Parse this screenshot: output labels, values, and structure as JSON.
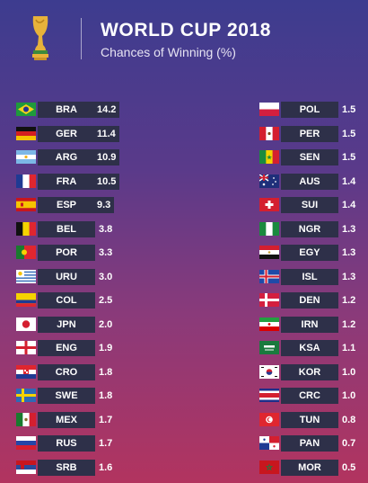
{
  "header": {
    "title": "WORLD CUP 2018",
    "subtitle": "Chances of Winning (%)",
    "icon": "trophy-icon"
  },
  "chart_data": {
    "type": "table",
    "title": "WORLD CUP 2018",
    "subtitle": "Chances of Winning (%)",
    "columns": [
      {
        "rows": [
          {
            "code": "BRA",
            "value": "14.2",
            "flag": "brazil"
          },
          {
            "code": "GER",
            "value": "11.4",
            "flag": "germany"
          },
          {
            "code": "ARG",
            "value": "10.9",
            "flag": "argentina"
          },
          {
            "code": "FRA",
            "value": "10.5",
            "flag": "france"
          },
          {
            "code": "ESP",
            "value": "9.3",
            "flag": "spain"
          },
          {
            "code": "BEL",
            "value": "3.8",
            "flag": "belgium"
          },
          {
            "code": "POR",
            "value": "3.3",
            "flag": "portugal"
          },
          {
            "code": "URU",
            "value": "3.0",
            "flag": "uruguay"
          },
          {
            "code": "COL",
            "value": "2.5",
            "flag": "colombia"
          },
          {
            "code": "JPN",
            "value": "2.0",
            "flag": "japan"
          },
          {
            "code": "ENG",
            "value": "1.9",
            "flag": "england"
          },
          {
            "code": "CRO",
            "value": "1.8",
            "flag": "croatia"
          },
          {
            "code": "SWE",
            "value": "1.8",
            "flag": "sweden"
          },
          {
            "code": "MEX",
            "value": "1.7",
            "flag": "mexico"
          },
          {
            "code": "RUS",
            "value": "1.7",
            "flag": "russia"
          },
          {
            "code": "SRB",
            "value": "1.6",
            "flag": "serbia"
          }
        ]
      },
      {
        "rows": [
          {
            "code": "POL",
            "value": "1.5",
            "flag": "poland"
          },
          {
            "code": "PER",
            "value": "1.5",
            "flag": "peru"
          },
          {
            "code": "SEN",
            "value": "1.5",
            "flag": "senegal"
          },
          {
            "code": "AUS",
            "value": "1.4",
            "flag": "australia"
          },
          {
            "code": "SUI",
            "value": "1.4",
            "flag": "switzerland"
          },
          {
            "code": "NGR",
            "value": "1.3",
            "flag": "nigeria"
          },
          {
            "code": "EGY",
            "value": "1.3",
            "flag": "egypt"
          },
          {
            "code": "ISL",
            "value": "1.3",
            "flag": "iceland"
          },
          {
            "code": "DEN",
            "value": "1.2",
            "flag": "denmark"
          },
          {
            "code": "IRN",
            "value": "1.2",
            "flag": "iran"
          },
          {
            "code": "KSA",
            "value": "1.1",
            "flag": "saudi-arabia"
          },
          {
            "code": "KOR",
            "value": "1.0",
            "flag": "south-korea"
          },
          {
            "code": "CRC",
            "value": "1.0",
            "flag": "costa-rica"
          },
          {
            "code": "TUN",
            "value": "0.8",
            "flag": "tunisia"
          },
          {
            "code": "PAN",
            "value": "0.7",
            "flag": "panama"
          },
          {
            "code": "MOR",
            "value": "0.5",
            "flag": "morocco"
          }
        ]
      }
    ]
  }
}
